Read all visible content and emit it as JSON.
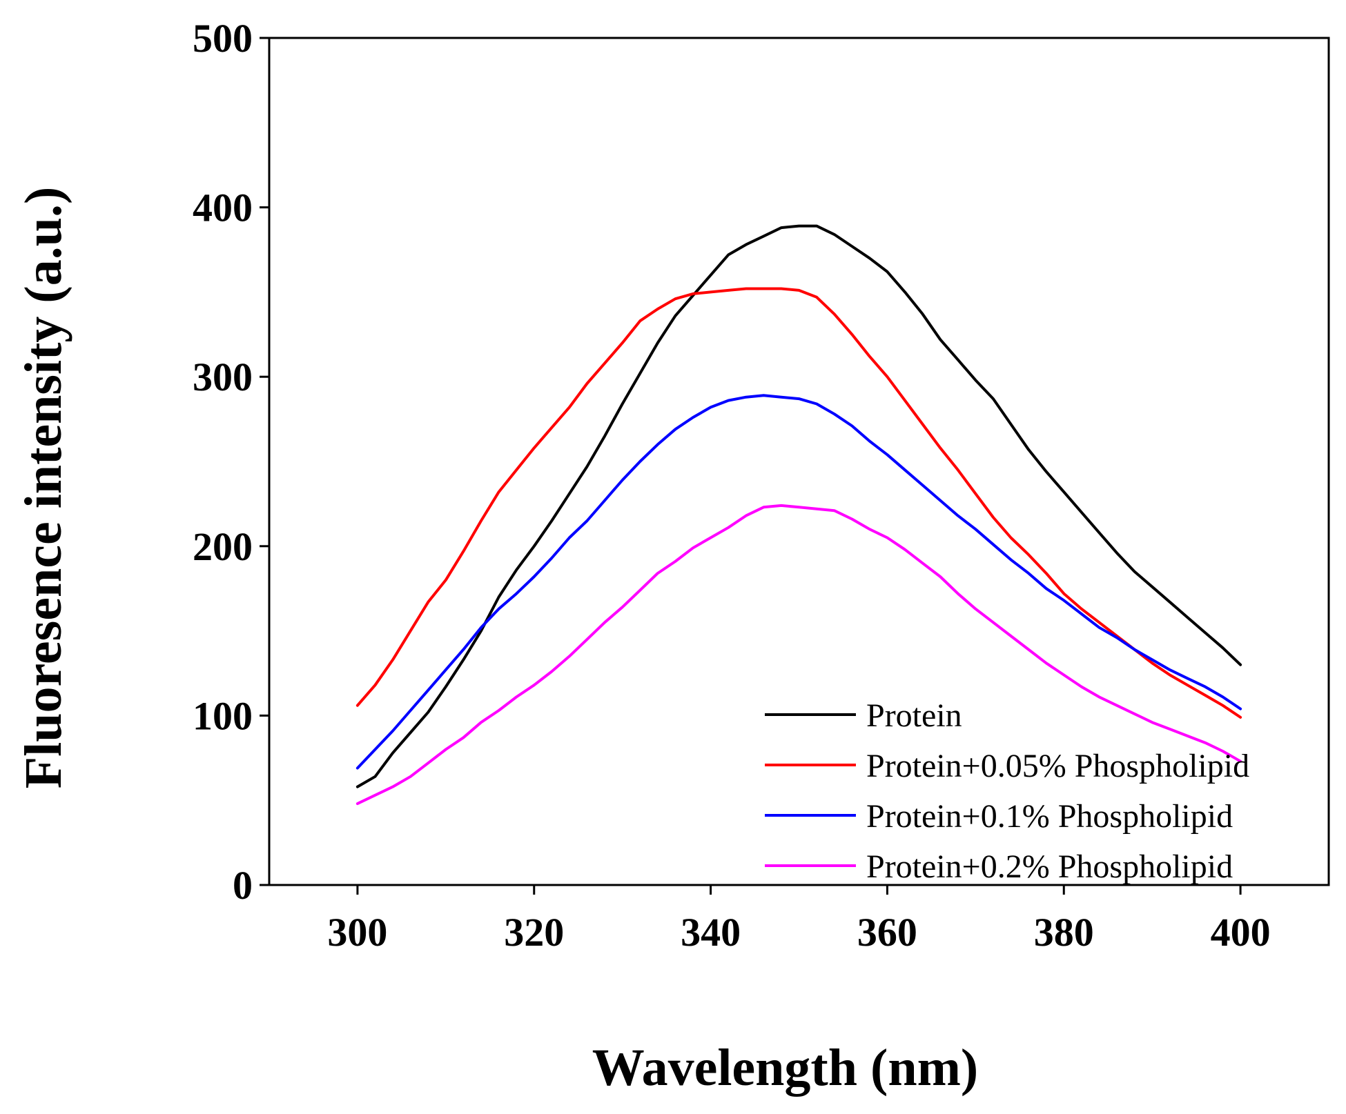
{
  "chart_data": {
    "type": "line",
    "title": "",
    "xlabel": "Wavelength (nm)",
    "ylabel": "Fluoresence intensity (a.u.)",
    "xlim": [
      290,
      410
    ],
    "ylim": [
      0,
      500
    ],
    "xticks": [
      300,
      320,
      340,
      360,
      380,
      400
    ],
    "yticks": [
      0,
      100,
      200,
      300,
      400,
      500
    ],
    "grid": false,
    "legend_position": "bottom-right",
    "x": [
      300,
      302,
      304,
      306,
      308,
      310,
      312,
      314,
      316,
      318,
      320,
      322,
      324,
      326,
      328,
      330,
      332,
      334,
      336,
      338,
      340,
      342,
      344,
      346,
      348,
      350,
      352,
      354,
      356,
      358,
      360,
      362,
      364,
      366,
      368,
      370,
      372,
      374,
      376,
      378,
      380,
      382,
      384,
      386,
      388,
      390,
      392,
      394,
      396,
      398,
      400
    ],
    "series": [
      {
        "name": "Protein",
        "color": "#000000",
        "values": [
          58,
          64,
          78,
          90,
          102,
          117,
          133,
          150,
          170,
          186,
          200,
          215,
          231,
          247,
          265,
          284,
          302,
          320,
          336,
          348,
          360,
          372,
          378,
          383,
          388,
          389,
          389,
          384,
          377,
          370,
          362,
          350,
          337,
          322,
          310,
          298,
          287,
          272,
          257,
          244,
          232,
          220,
          208,
          196,
          185,
          176,
          167,
          158,
          149,
          140,
          130
        ]
      },
      {
        "name": "Protein+0.05% Phospholipid",
        "color": "#ff0000",
        "values": [
          106,
          118,
          133,
          150,
          167,
          180,
          197,
          215,
          232,
          245,
          258,
          270,
          282,
          296,
          308,
          320,
          333,
          340,
          346,
          349,
          350,
          351,
          352,
          352,
          352,
          351,
          347,
          337,
          325,
          312,
          300,
          286,
          272,
          258,
          245,
          231,
          217,
          205,
          195,
          184,
          172,
          163,
          155,
          147,
          139,
          131,
          124,
          118,
          112,
          106,
          99
        ]
      },
      {
        "name": "Protein+0.1% Phospholipid",
        "color": "#0000ff",
        "values": [
          69,
          80,
          91,
          103,
          115,
          127,
          139,
          152,
          163,
          172,
          182,
          193,
          205,
          215,
          227,
          239,
          250,
          260,
          269,
          276,
          282,
          286,
          288,
          289,
          288,
          287,
          284,
          278,
          271,
          262,
          254,
          245,
          236,
          227,
          218,
          210,
          201,
          192,
          184,
          175,
          168,
          160,
          152,
          146,
          139,
          133,
          127,
          122,
          117,
          111,
          104
        ]
      },
      {
        "name": "Protein+0.2% Phospholipid",
        "color": "#ff00ff",
        "values": [
          48,
          53,
          58,
          64,
          72,
          80,
          87,
          96,
          103,
          111,
          118,
          126,
          135,
          145,
          155,
          164,
          174,
          184,
          191,
          199,
          205,
          211,
          218,
          223,
          224,
          223,
          222,
          221,
          216,
          210,
          205,
          198,
          190,
          182,
          172,
          163,
          155,
          147,
          139,
          131,
          124,
          117,
          111,
          106,
          101,
          96,
          92,
          88,
          84,
          79,
          73
        ]
      }
    ]
  }
}
